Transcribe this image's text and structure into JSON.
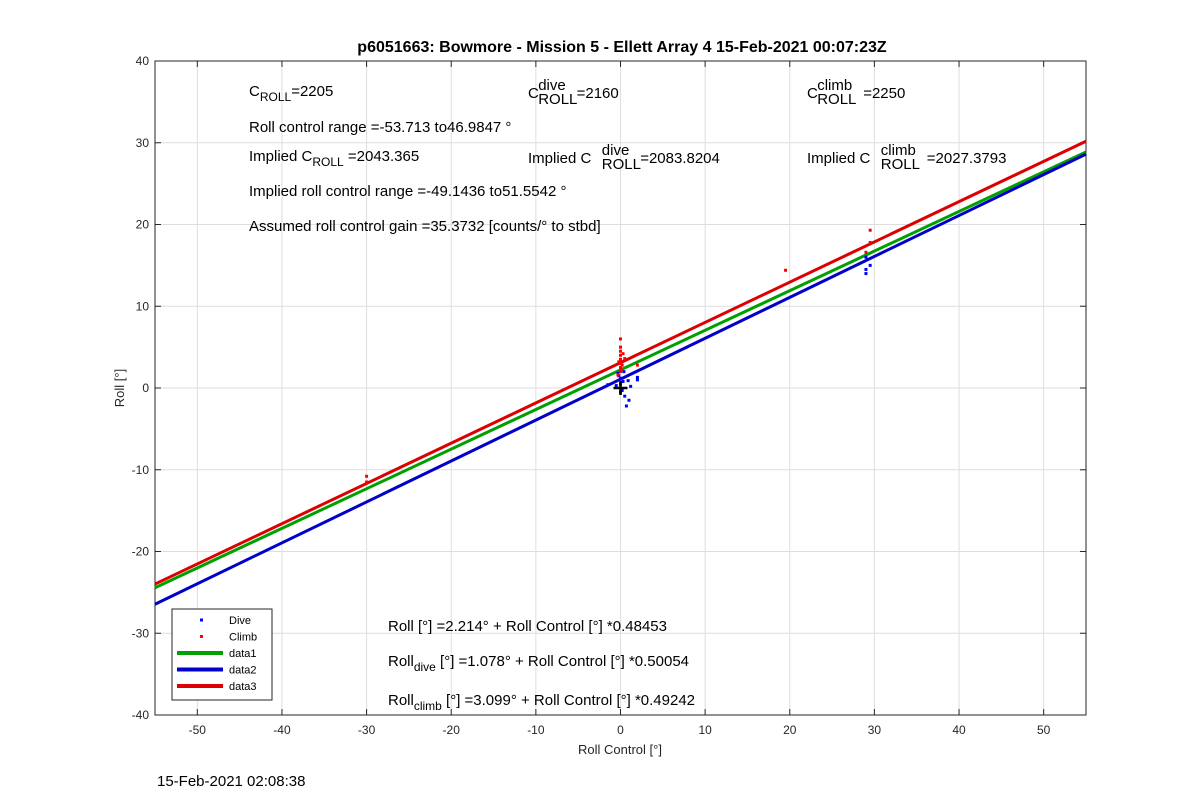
{
  "footer_timestamp": "15-Feb-2021 02:08:38",
  "chart_data": {
    "type": "scatter",
    "title": "p6051663: Bowmore - Mission 5 - Ellett Array 4 15-Feb-2021 00:07:23Z",
    "xlabel": "Roll Control [°]",
    "ylabel": "Roll [°]",
    "xlim": [
      -55,
      55
    ],
    "ylim": [
      -40,
      40
    ],
    "xticks": [
      -50,
      -40,
      -30,
      -20,
      -10,
      0,
      10,
      20,
      30,
      40,
      50
    ],
    "yticks": [
      -40,
      -30,
      -20,
      -10,
      0,
      10,
      20,
      30,
      40
    ],
    "grid": true,
    "legend_location": "bottom-left",
    "series": [
      {
        "name": "Dive",
        "kind": "points",
        "color": "#0000ff",
        "points": [
          [
            0,
            0.5
          ],
          [
            0,
            1.2
          ],
          [
            0,
            -0.5
          ],
          [
            0.3,
            0.8
          ],
          [
            -0.2,
            1.5
          ],
          [
            0.5,
            -1
          ],
          [
            1,
            -1.5
          ],
          [
            0.7,
            -2.2
          ],
          [
            0.9,
            0.9
          ],
          [
            1.2,
            0.2
          ],
          [
            -0.5,
            0.3
          ],
          [
            0.2,
            -0.3
          ],
          [
            2,
            1
          ],
          [
            2,
            1.3
          ],
          [
            -1.5,
            0.4
          ],
          [
            0.4,
            2
          ],
          [
            -0.3,
            1.8
          ],
          [
            29,
            14
          ],
          [
            29,
            14.5
          ],
          [
            29,
            16
          ],
          [
            29.5,
            15
          ]
        ]
      },
      {
        "name": "Climb",
        "kind": "points",
        "color": "#ff0000",
        "points": [
          [
            0,
            2
          ],
          [
            0,
            2.5
          ],
          [
            0,
            3
          ],
          [
            0,
            3.5
          ],
          [
            0,
            4
          ],
          [
            0,
            4.5
          ],
          [
            0,
            5
          ],
          [
            0,
            6
          ],
          [
            0.2,
            2.8
          ],
          [
            -0.2,
            3.2
          ],
          [
            0.3,
            4.2
          ],
          [
            -0.3,
            1.6
          ],
          [
            0.5,
            3.6
          ],
          [
            0.1,
            2.2
          ],
          [
            2,
            2.8
          ],
          [
            -30,
            -10.8
          ],
          [
            -30,
            -11.5
          ],
          [
            19.5,
            14.4
          ],
          [
            29.5,
            17.8
          ],
          [
            29.5,
            19.3
          ],
          [
            29,
            16.6
          ]
        ]
      },
      {
        "name": "data1",
        "kind": "line",
        "color": "#00a000",
        "intercept": 2.214,
        "slope": 0.48453
      },
      {
        "name": "data2",
        "kind": "line",
        "color": "#0000c8",
        "intercept": 1.078,
        "slope": 0.50054
      },
      {
        "name": "data3",
        "kind": "line",
        "color": "#dd0000",
        "intercept": 3.099,
        "slope": 0.49242
      }
    ],
    "origin_marker": [
      0,
      0
    ],
    "annotations": {
      "c_roll": {
        "base": "C",
        "sub": "ROLL",
        "sup": "",
        "value": "=2205"
      },
      "c_roll_dive": {
        "base": "C",
        "sub": "ROLL",
        "sup": "dive",
        "value": "=2160"
      },
      "c_roll_climb": {
        "base": "C",
        "sub": "ROLL",
        "sup": "climb",
        "value": "=2250"
      },
      "roll_control_range": "Roll control range =-53.713 to46.9847 °",
      "implied_c_roll": {
        "prefix": "Implied C",
        "sub": "ROLL",
        "value": "=2043.365"
      },
      "implied_c_roll_dive": {
        "prefix": "Implied C",
        "sub": "ROLL",
        "sup": "dive",
        "value": "=2083.8204"
      },
      "implied_c_roll_climb": {
        "prefix": "Implied C",
        "sub": "ROLL",
        "sup": "climb",
        "value": "=2027.3793"
      },
      "implied_range": "Implied roll control range =-49.1436 to51.5542 °",
      "gain": "Assumed roll control gain =35.3732 [counts/° to stbd]",
      "fit_all": "Roll [°] =2.214° + Roll Control [°] *0.48453",
      "fit_dive": {
        "prefix": "Roll",
        "sub": "dive",
        "rest": " [°] =1.078° + Roll Control [°] *0.50054"
      },
      "fit_climb": {
        "prefix": "Roll",
        "sub": "climb",
        "rest": " [°] =3.099° + Roll Control [°] *0.49242"
      }
    }
  }
}
